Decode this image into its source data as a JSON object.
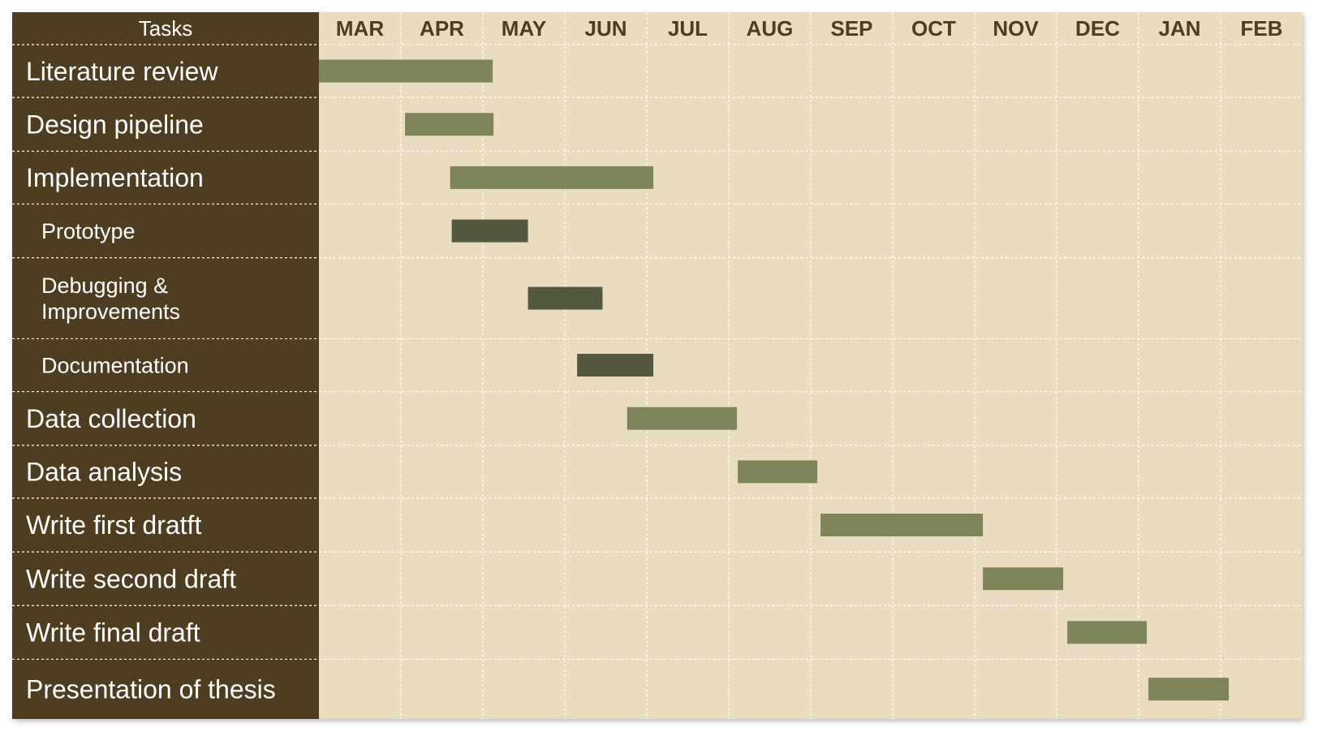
{
  "colors": {
    "task_column": "#4e3d20",
    "timeline_bg": "#e9dcc1",
    "grid": "#ffffff",
    "month_text": "#4e3d20",
    "task_text": "#ffffff",
    "main_bar": "#7f855b",
    "sub_bar": "#525940"
  },
  "chart_data": {
    "type": "gantt",
    "header": "Tasks",
    "months": [
      "MAR",
      "APR",
      "MAY",
      "JUN",
      "JUL",
      "AUG",
      "SEP",
      "OCT",
      "NOV",
      "DEC",
      "JAN",
      "FEB"
    ],
    "tasks": [
      {
        "name": "Literature review",
        "level": 0,
        "start": 0.0,
        "end": 2.12
      },
      {
        "name": "Design pipeline",
        "level": 0,
        "start": 1.05,
        "end": 2.13
      },
      {
        "name": "Implementation",
        "level": 0,
        "start": 1.6,
        "end": 4.08
      },
      {
        "name": "Prototype",
        "level": 1,
        "start": 1.62,
        "end": 2.55
      },
      {
        "name": "Debugging & Improvements",
        "level": 1,
        "start": 2.55,
        "end": 3.46
      },
      {
        "name": "Documentation",
        "level": 1,
        "start": 3.15,
        "end": 4.08
      },
      {
        "name": "Data collection",
        "level": 0,
        "start": 3.76,
        "end": 5.1
      },
      {
        "name": "Data analysis",
        "level": 0,
        "start": 5.11,
        "end": 6.08
      },
      {
        "name": "Write first dratft",
        "level": 0,
        "start": 6.12,
        "end": 8.1
      },
      {
        "name": "Write second draft",
        "level": 0,
        "start": 8.1,
        "end": 9.08
      },
      {
        "name": "Write final draft",
        "level": 0,
        "start": 9.13,
        "end": 10.1
      },
      {
        "name": "Presentation of thesis",
        "level": 0,
        "start": 10.12,
        "end": 11.1
      }
    ]
  }
}
